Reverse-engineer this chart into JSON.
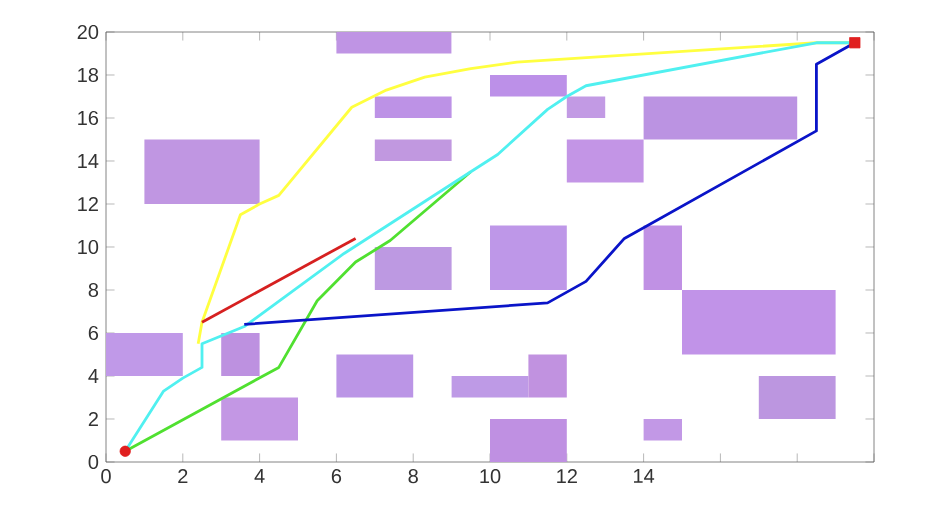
{
  "chart_data": {
    "type": "line",
    "xlim": [
      0,
      20
    ],
    "ylim": [
      0,
      20
    ],
    "xticks": [
      0,
      2,
      4,
      6,
      8,
      10,
      12,
      14,
      {
        "value": 16,
        "label": null
      },
      {
        "value": 18,
        "label": null
      },
      {
        "value": 20,
        "label": null
      }
    ],
    "yticks": [
      0,
      2,
      4,
      6,
      8,
      10,
      12,
      14,
      16,
      18,
      20
    ],
    "grid": false,
    "series": [
      {
        "type": "area",
        "color": "#bf94e4",
        "x": [
          6,
          9,
          9,
          6
        ],
        "values": [
          19,
          19,
          20,
          20
        ]
      },
      {
        "type": "area",
        "color": "#c096e2",
        "x": [
          1,
          4,
          4,
          1
        ],
        "values": [
          12,
          12,
          15,
          15
        ]
      },
      {
        "type": "area",
        "color": "#bd92e6",
        "x": [
          7,
          9,
          9,
          7
        ],
        "values": [
          16,
          16,
          17,
          17
        ]
      },
      {
        "type": "area",
        "color": "#c198e0",
        "x": [
          7,
          9,
          9,
          7
        ],
        "values": [
          14,
          14,
          15,
          15
        ]
      },
      {
        "type": "area",
        "color": "#bc90e8",
        "x": [
          10,
          12,
          12,
          10
        ],
        "values": [
          17,
          17,
          18,
          18
        ]
      },
      {
        "type": "area",
        "color": "#c29ae4",
        "x": [
          12,
          13,
          13,
          12
        ],
        "values": [
          16,
          16,
          17,
          17
        ]
      },
      {
        "type": "area",
        "color": "#bb93e2",
        "x": [
          14,
          18,
          18,
          14
        ],
        "values": [
          15,
          15,
          17,
          17
        ]
      },
      {
        "type": "area",
        "color": "#c395e6",
        "x": [
          12,
          14,
          14,
          12
        ],
        "values": [
          13,
          13,
          15,
          15
        ]
      },
      {
        "type": "area",
        "color": "#be97e8",
        "x": [
          10,
          12,
          12,
          10
        ],
        "values": [
          8,
          8,
          11,
          11
        ]
      },
      {
        "type": "area",
        "color": "#c091e4",
        "x": [
          14,
          15,
          15,
          14
        ],
        "values": [
          8,
          8,
          11,
          11
        ]
      },
      {
        "type": "area",
        "color": "#bd99e2",
        "x": [
          7,
          9,
          9,
          7
        ],
        "values": [
          8,
          8,
          10,
          10
        ]
      },
      {
        "type": "area",
        "color": "#c193e8",
        "x": [
          15,
          19,
          19,
          15
        ],
        "values": [
          5,
          5,
          8,
          8
        ]
      },
      {
        "type": "area",
        "color": "#bc96e0",
        "x": [
          17,
          19,
          19,
          17
        ],
        "values": [
          2,
          2,
          4,
          4
        ]
      },
      {
        "type": "area",
        "color": "#c298e6",
        "x": [
          14,
          15,
          15,
          14
        ],
        "values": [
          1,
          1,
          2,
          2
        ]
      },
      {
        "type": "area",
        "color": "#bf90e2",
        "x": [
          10,
          12,
          12,
          10
        ],
        "values": [
          0,
          0,
          2,
          2
        ]
      },
      {
        "type": "area",
        "color": "#be9ae6",
        "x": [
          9,
          11,
          11,
          9
        ],
        "values": [
          3,
          3,
          4,
          4
        ]
      },
      {
        "type": "area",
        "color": "#c192e0",
        "x": [
          11,
          12,
          12,
          11
        ],
        "values": [
          3,
          3,
          5,
          5
        ]
      },
      {
        "type": "area",
        "color": "#bb95e6",
        "x": [
          6,
          8,
          8,
          6
        ],
        "values": [
          3,
          3,
          5,
          5
        ]
      },
      {
        "type": "area",
        "color": "#c397e4",
        "x": [
          3,
          5,
          5,
          3
        ],
        "values": [
          1,
          1,
          3,
          3
        ]
      },
      {
        "type": "area",
        "color": "#bd91e0",
        "x": [
          3,
          4,
          4,
          3
        ],
        "values": [
          4,
          4,
          6,
          6
        ]
      },
      {
        "type": "area",
        "color": "#c099e8",
        "x": [
          0,
          2,
          2,
          0
        ],
        "values": [
          4,
          4,
          6,
          6
        ]
      },
      {
        "type": "line",
        "color": "#50e030",
        "x": [
          0.5,
          4.5,
          5.5,
          6.5,
          7.4,
          9.5
        ],
        "values": [
          0.5,
          4.4,
          7.5,
          9.3,
          10.3,
          13.5
        ]
      },
      {
        "type": "line",
        "color": "#ffff40",
        "x": [
          2.4,
          2.5,
          3.2,
          3.5,
          4,
          4.5,
          6.4,
          7.3,
          8.3,
          9.5,
          10.7,
          18.5,
          19.5
        ],
        "values": [
          5.5,
          6.5,
          10,
          11.5,
          12,
          12.4,
          16.5,
          17.3,
          17.9,
          18.3,
          18.6,
          19.5,
          19.5
        ]
      },
      {
        "type": "line",
        "color": "#d62020",
        "x": [
          2.5,
          6.5
        ],
        "values": [
          6.5,
          10.4
        ]
      },
      {
        "type": "line",
        "color": "#50f0f0",
        "x": [
          0.5,
          1.5,
          2,
          2.5,
          2.5,
          3.6,
          6.2,
          9.5,
          10.2,
          11.5,
          12,
          12.5,
          18.5,
          19.5
        ],
        "values": [
          0.5,
          3.3,
          3.9,
          4.4,
          5.5,
          6.3,
          9.7,
          13.5,
          14.3,
          16.4,
          17,
          17.5,
          19.5,
          19.5
        ]
      },
      {
        "type": "line",
        "color": "#0a14c8",
        "x": [
          3.6,
          11.5,
          12.5,
          13.5,
          18.5,
          18.5,
          19.5
        ],
        "values": [
          6.4,
          7.4,
          8.4,
          10.4,
          15.4,
          18.5,
          19.5
        ]
      },
      {
        "type": "scatter",
        "color": "#e02020",
        "marker": "circle",
        "x": [
          0.5
        ],
        "values": [
          0.5
        ]
      },
      {
        "type": "scatter",
        "color": "#e02020",
        "marker": "square",
        "x": [
          19.5
        ],
        "values": [
          19.5
        ]
      }
    ]
  }
}
